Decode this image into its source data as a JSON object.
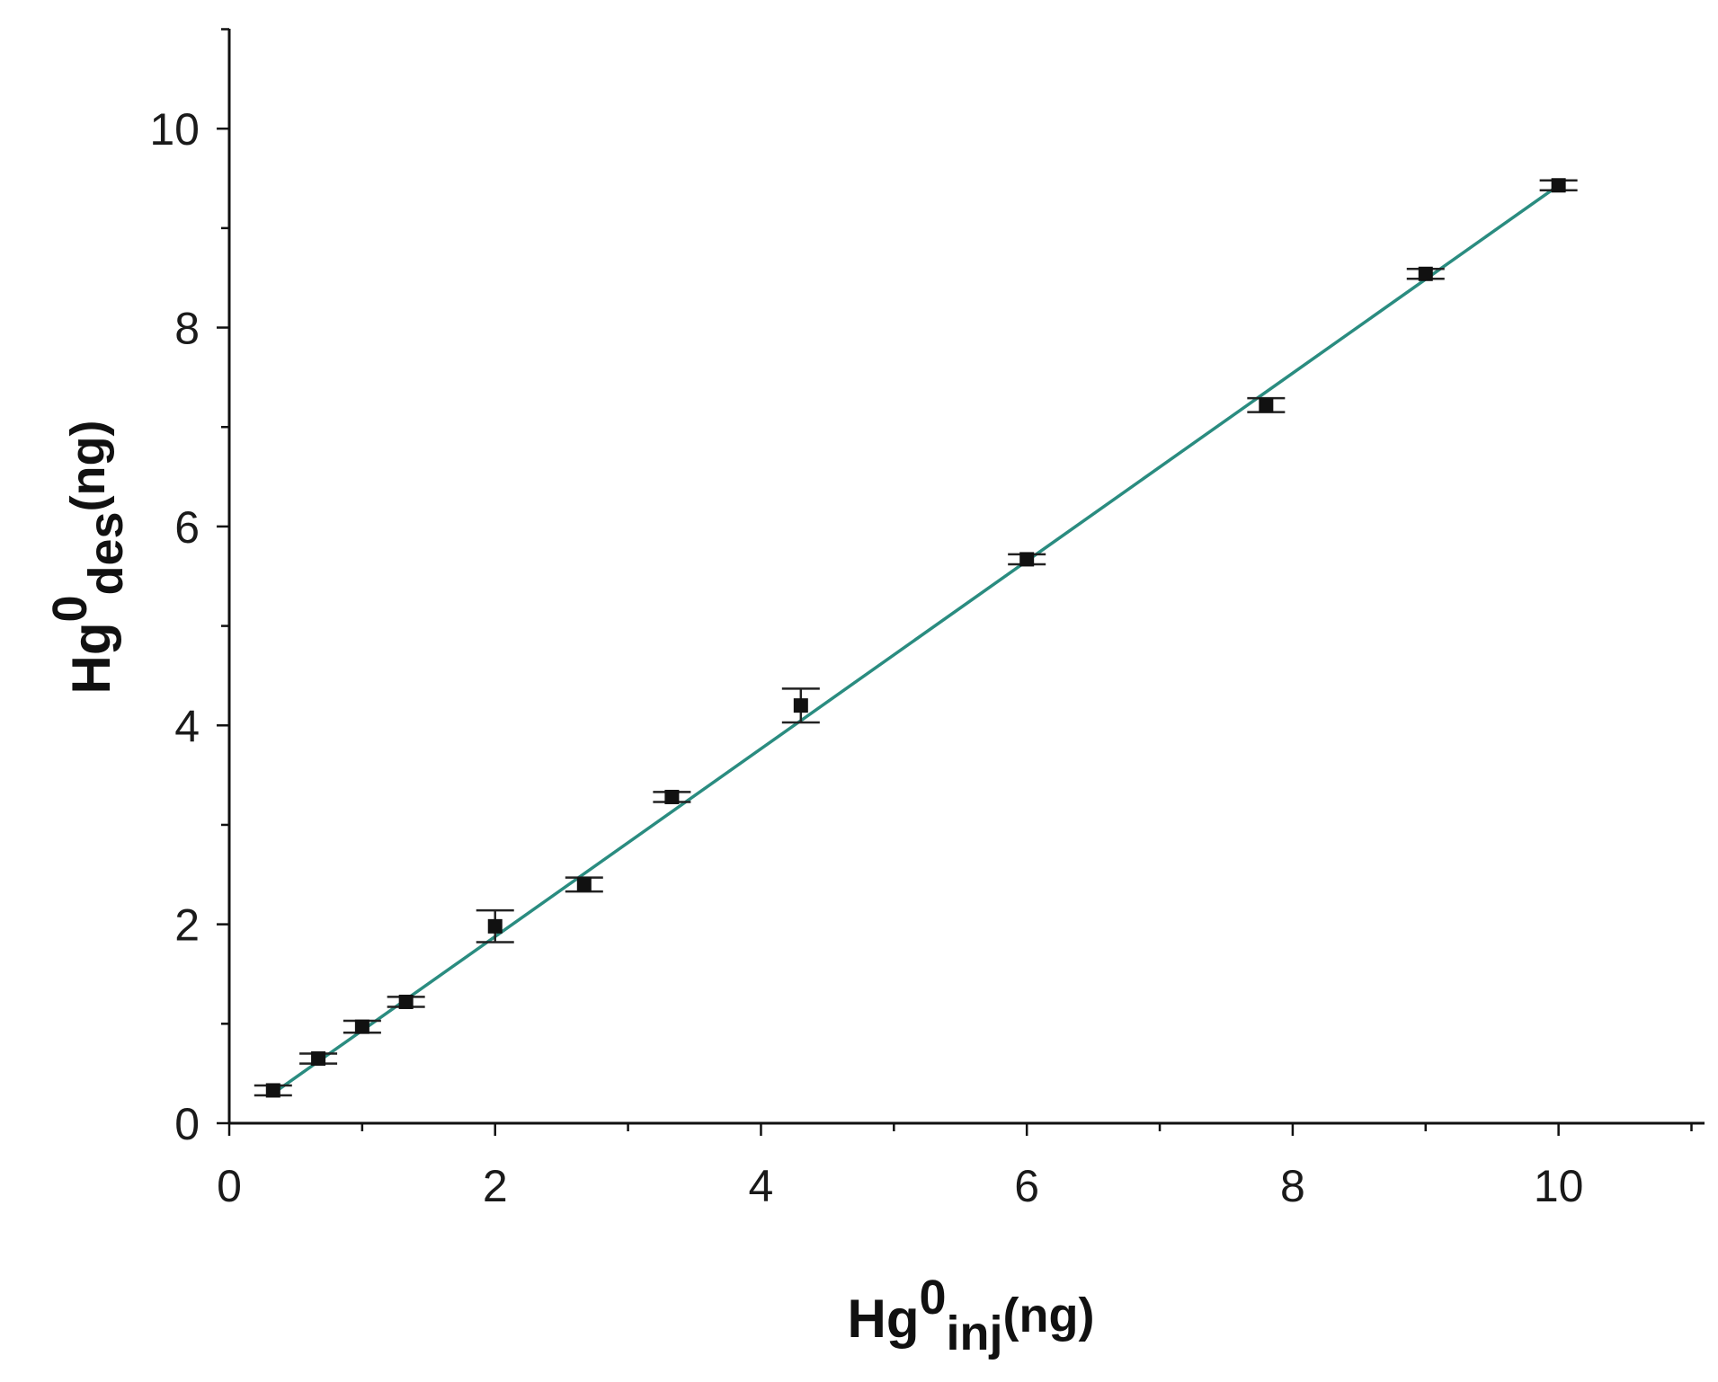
{
  "chart_data": {
    "type": "scatter",
    "x_label": {
      "main": "Hg",
      "sup": "0",
      "sub": "inj",
      "unit": "(ng)"
    },
    "y_label": {
      "main": "Hg",
      "sup": "0",
      "sub": "des",
      "unit": "(ng)"
    },
    "xlim": [
      0,
      11
    ],
    "ylim": [
      0,
      11
    ],
    "x_ticks": [
      "0",
      "2",
      "4",
      "6",
      "8",
      "10"
    ],
    "y_ticks": [
      "0",
      "2",
      "4",
      "6",
      "8",
      "10"
    ],
    "minor_tick_step": 1,
    "grid": false,
    "legend": "none",
    "marker_color": "#111111",
    "line_color": "#2a8c80",
    "errorbar_color": "#222222",
    "series": [
      {
        "marker": "square",
        "x": [
          0.33,
          0.67,
          1.0,
          1.33,
          2.0,
          2.67,
          3.33,
          4.3,
          6.0,
          7.8,
          9.0,
          10.0
        ],
        "y": [
          0.33,
          0.65,
          0.97,
          1.22,
          1.98,
          2.4,
          3.28,
          4.2,
          5.67,
          7.22,
          8.54,
          9.43
        ],
        "y_error": [
          0.05,
          0.05,
          0.06,
          0.05,
          0.16,
          0.07,
          0.05,
          0.17,
          0.05,
          0.07,
          0.05,
          0.05
        ]
      }
    ],
    "fit_line": {
      "x": [
        0.33,
        10.0
      ],
      "y": [
        0.3,
        9.43
      ]
    }
  }
}
